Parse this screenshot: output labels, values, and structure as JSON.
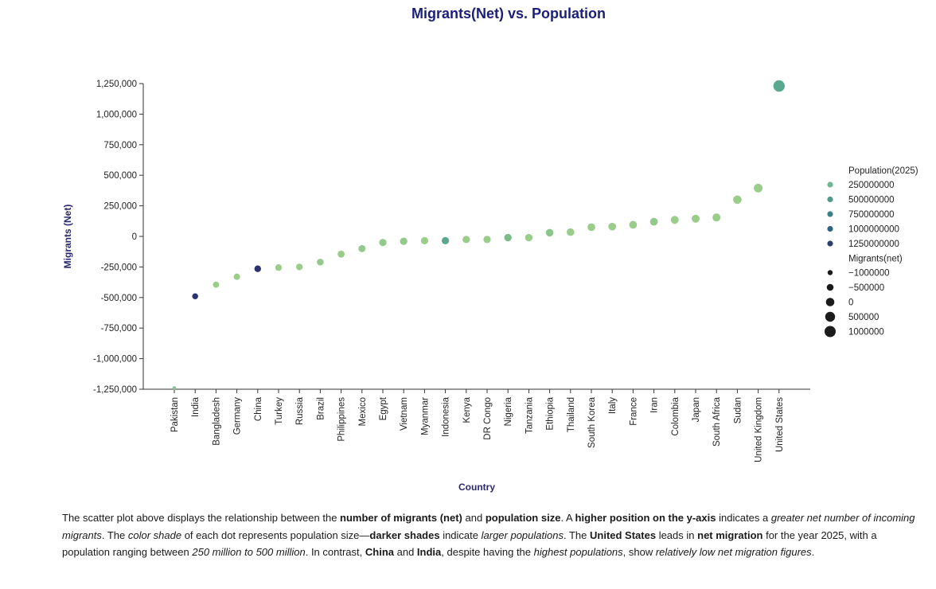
{
  "chart_data": {
    "type": "scatter",
    "title": "Migrants(Net) vs. Population",
    "xlabel": "Country",
    "ylabel": "Migrants (Net)",
    "ylim": [
      -1250000,
      1250000
    ],
    "yticks": [
      1250000,
      1000000,
      750000,
      500000,
      250000,
      0,
      -250000,
      -500000,
      -750000,
      -1000000,
      -1250000
    ],
    "ytick_labels": [
      "1,250,000",
      "1,000,000",
      "750,000",
      "500,000",
      "250,000",
      "0",
      "-250,000",
      "-500,000",
      "-750,000",
      "-1,000,000",
      "-1,250,000"
    ],
    "categories": [
      "Pakistan",
      "India",
      "Bangladesh",
      "Germany",
      "China",
      "Turkey",
      "Russia",
      "Brazil",
      "Philippines",
      "Mexico",
      "Egypt",
      "Vietnam",
      "Myanmar",
      "Indonesia",
      "Kenya",
      "DR Congo",
      "Nigeria",
      "Tanzania",
      "Ethiopia",
      "Thailand",
      "South Korea",
      "Italy",
      "France",
      "Iran",
      "Colombia",
      "Japan",
      "South Africa",
      "Sudan",
      "United Kingdom",
      "United States"
    ],
    "values": [
      -1240000,
      -490000,
      -395000,
      -330000,
      -265000,
      -255000,
      -250000,
      -210000,
      -145000,
      -100000,
      -50000,
      -40000,
      -35000,
      -35000,
      -25000,
      -25000,
      -10000,
      -10000,
      30000,
      35000,
      75000,
      80000,
      95000,
      120000,
      135000,
      145000,
      155000,
      300000,
      395000,
      1230000
    ],
    "shade": [
      "#86c495",
      "#2a3370",
      "#9acd8a",
      "#9acd8a",
      "#2a3370",
      "#9acd8a",
      "#9acd8a",
      "#94c98d",
      "#9acd8a",
      "#94c98d",
      "#92c98c",
      "#92c98c",
      "#9acd8a",
      "#5aa88f",
      "#9acd8a",
      "#9acd8a",
      "#7cba8b",
      "#9acd8a",
      "#8cc68c",
      "#9acd8a",
      "#9acd8a",
      "#9acd8a",
      "#9acd8a",
      "#94c98d",
      "#9acd8a",
      "#9acd8a",
      "#9acd8a",
      "#9acd8a",
      "#9acd8a",
      "#5aa88f"
    ],
    "legend": {
      "placement": "right",
      "hue_title": "Population(2025)",
      "hue_items": [
        {
          "label": "250000000",
          "color": "#6cb890"
        },
        {
          "label": "500000000",
          "color": "#4f9a8c"
        },
        {
          "label": "750000000",
          "color": "#3a8088"
        },
        {
          "label": "1000000000",
          "color": "#2c6481"
        },
        {
          "label": "1250000000",
          "color": "#2a3f6e"
        }
      ],
      "size_title": "Migrants(net)",
      "size_items": [
        {
          "label": "−1000000",
          "size": 1
        },
        {
          "label": "−500000",
          "size": 2
        },
        {
          "label": "0",
          "size": 3
        },
        {
          "label": "500000",
          "size": 4
        },
        {
          "label": "1000000",
          "size": 5
        }
      ]
    },
    "grid": false
  },
  "caption": {
    "parts": [
      {
        "t": "The scatter plot above displays the relationship between the ",
        "s": ""
      },
      {
        "t": "number of migrants (net)",
        "s": "b"
      },
      {
        "t": " and ",
        "s": ""
      },
      {
        "t": "population size",
        "s": "b"
      },
      {
        "t": ". A ",
        "s": ""
      },
      {
        "t": "higher position on the y-axis",
        "s": "b"
      },
      {
        "t": " indicates a ",
        "s": ""
      },
      {
        "t": "greater net number of incoming migrants",
        "s": "i"
      },
      {
        "t": ". The ",
        "s": ""
      },
      {
        "t": "color shade",
        "s": "i"
      },
      {
        "t": " of each dot represents population size—",
        "s": ""
      },
      {
        "t": "darker shades",
        "s": "b"
      },
      {
        "t": " indicate ",
        "s": ""
      },
      {
        "t": "larger populations",
        "s": "i"
      },
      {
        "t": ". The ",
        "s": ""
      },
      {
        "t": "United States",
        "s": "b"
      },
      {
        "t": " leads in ",
        "s": ""
      },
      {
        "t": "net migration",
        "s": "b"
      },
      {
        "t": " for the year 2025, with a population ranging between ",
        "s": ""
      },
      {
        "t": "250 million to 500 million",
        "s": "i"
      },
      {
        "t": ". In contrast, ",
        "s": ""
      },
      {
        "t": "China",
        "s": "b"
      },
      {
        "t": " and ",
        "s": ""
      },
      {
        "t": "India",
        "s": "b"
      },
      {
        "t": ", despite having the ",
        "s": ""
      },
      {
        "t": "highest populations",
        "s": "i"
      },
      {
        "t": ", show ",
        "s": ""
      },
      {
        "t": "relatively low net migration figures",
        "s": "i"
      },
      {
        "t": ".",
        "s": ""
      }
    ]
  }
}
